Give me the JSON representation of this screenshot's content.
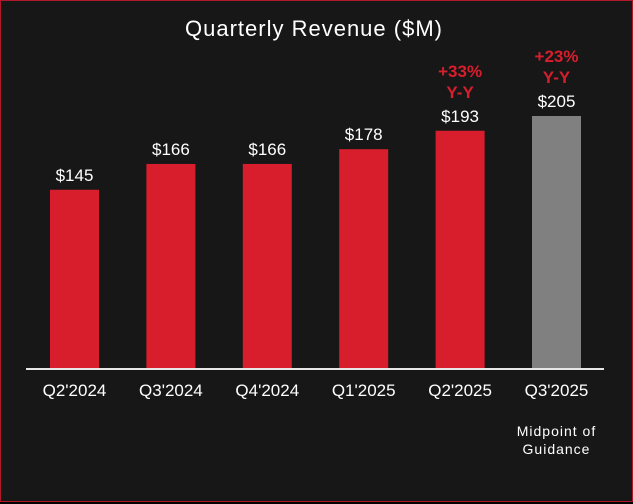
{
  "chart_data": {
    "type": "bar",
    "title": "Quarterly Revenue ($M)",
    "xlabel": "",
    "ylabel": "",
    "ylim": [
      0,
      205
    ],
    "grid": false,
    "legend": "none",
    "categories": [
      "Q2'2024",
      "Q3'2024",
      "Q4'2024",
      "Q1'2025",
      "Q2'2025",
      "Q3'2025"
    ],
    "values": [
      145,
      166,
      166,
      178,
      193,
      205
    ],
    "value_labels": [
      "$145",
      "$166",
      "$166",
      "$178",
      "$193",
      "$205"
    ],
    "bar_colors": [
      "#d81e2c",
      "#d81e2c",
      "#d81e2c",
      "#d81e2c",
      "#d81e2c",
      "#808080"
    ],
    "annotations": [
      {
        "category": "Q2'2025",
        "lines": [
          "+33%",
          "Y-Y"
        ],
        "color": "#d81e2c"
      },
      {
        "category": "Q3'2025",
        "lines": [
          "+23%",
          "Y-Y"
        ],
        "color": "#d81e2c"
      }
    ],
    "footnote": {
      "category": "Q3'2025",
      "lines": [
        "Midpoint of",
        "Guidance"
      ]
    }
  },
  "colors": {
    "background": "#171717",
    "border": "#b0182a",
    "accent_red": "#d81e2c",
    "guidance_gray": "#808080",
    "text": "#ffffff"
  }
}
